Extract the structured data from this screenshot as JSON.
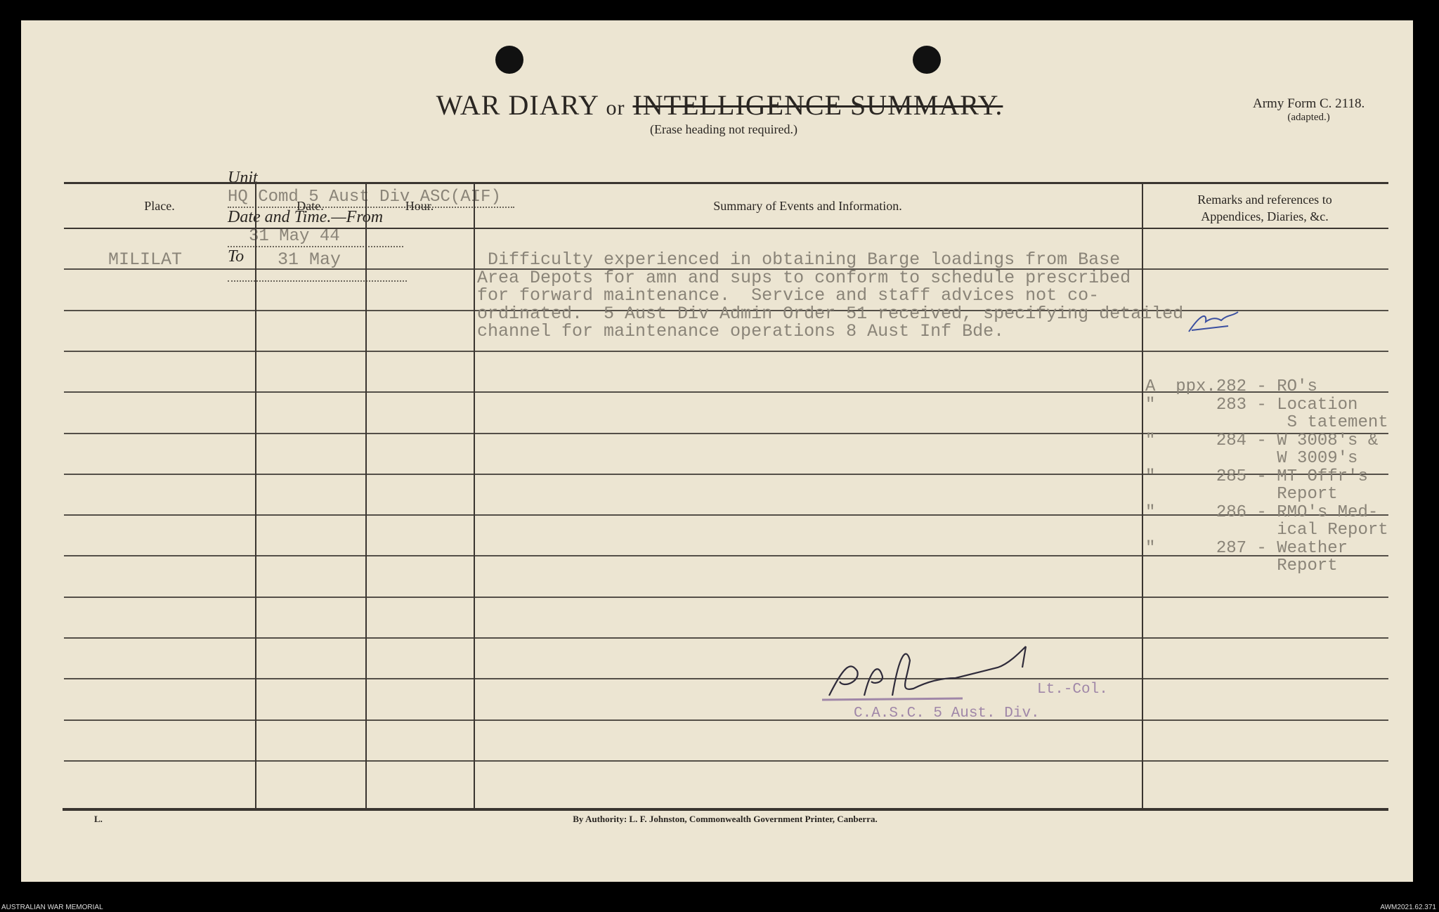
{
  "header": {
    "title_main": "WAR DIARY",
    "title_or": "or",
    "title_struck": "INTELLIGENCE SUMMARY.",
    "subtitle": "(Erase heading not required.)",
    "army_form": "Army Form C. 2118.",
    "army_form_note": "(adapted.)"
  },
  "unit_line": {
    "unit_label": "Unit",
    "unit_value": "HQ Comd 5 Aust Div ASC(AIF)",
    "date_label": "Date and Time.—From",
    "date_value": "31 May 44",
    "to_label": "To",
    "to_value": ""
  },
  "table": {
    "columns": [
      "Place.",
      "Date.",
      "Hour.",
      "Summary of Events and Information.",
      "Remarks and references to Appendices, Diaries, &c."
    ],
    "entry": {
      "place": "MILILAT",
      "date": "31 May",
      "hour": "",
      "summary_lines": [
        " Difficulty experienced in obtaining Barge loadings from Base",
        "Area Depots for amn and sups to conform to schedule prescribed",
        "for forward maintenance.  Service and staff advices not co-",
        "ordinated.  5 Aust Div Admin Order 51 received, specifying detailed",
        "channel for maintenance operations 8 Aust Inf Bde."
      ]
    },
    "remarks": [
      "A  ppx.282 - RO's",
      "\"      283 - Location",
      "              S tatement",
      "\"      284 - W 3008's &",
      "             W 3009's",
      "\"      285 - MT Offr's",
      "             Report",
      "\"      286 - RMO's Med-",
      "             ical Report",
      "\"      287 - Weather",
      "             Report"
    ]
  },
  "signature": {
    "rank": "Lt.-Col.",
    "stamp": "C.A.S.C. 5 Aust. Div."
  },
  "footer": {
    "form_letter": "L.",
    "authority": "By Authority: L. F. Johnston, Commonwealth Government Printer, Canberra."
  },
  "archive": {
    "left": "AUSTRALIAN WAR MEMORIAL",
    "right": "AWM2021.62.371"
  },
  "colors": {
    "paper": "#ece5d2",
    "ink": "#2a2622",
    "typewriter": "#8a8478",
    "stamp": "#a087a8",
    "pen": "#3a4fa0"
  }
}
